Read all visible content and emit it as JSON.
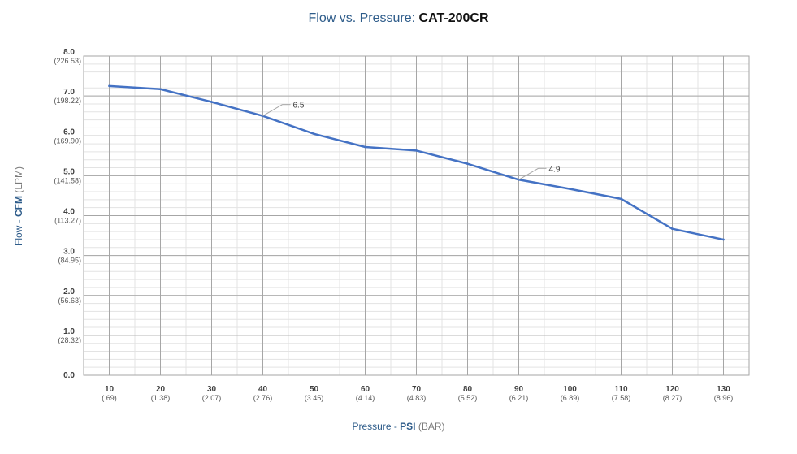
{
  "chart_data": {
    "type": "line",
    "title": "Flow vs. Pressure:",
    "title_model": "CAT-200CR",
    "xlabel_prefix": "Pressure - ",
    "xlabel_main": "PSI",
    "xlabel_unit": "(BAR)",
    "ylabel_prefix": "Flow - ",
    "ylabel_main": "CFM",
    "ylabel_unit": "(LPM)",
    "x_ticks": [
      10,
      20,
      30,
      40,
      50,
      60,
      70,
      80,
      90,
      100,
      110,
      120,
      130
    ],
    "x_ticks_secondary": [
      "(.69)",
      "(1.38)",
      "(2.07)",
      "(2.76)",
      "(3.45)",
      "(4.14)",
      "(4.83)",
      "(5.52)",
      "(6.21)",
      "(6.89)",
      "(7.58)",
      "(8.27)",
      "(8.96)"
    ],
    "y_ticks": [
      "0.0",
      "1.0",
      "2.0",
      "3.0",
      "4.0",
      "5.0",
      "6.0",
      "7.0",
      "8.0"
    ],
    "y_ticks_secondary": [
      "",
      "(28.32)",
      "(56.63)",
      "(84.95)",
      "(113.27)",
      "(141.58)",
      "(169.90)",
      "(198.22)",
      "(226.53)"
    ],
    "xlim": [
      5,
      135
    ],
    "ylim": [
      0,
      8
    ],
    "grid": true,
    "series": [
      {
        "color": "#4472c4",
        "x": [
          10,
          20,
          30,
          40,
          50,
          60,
          70,
          80,
          90,
          100,
          110,
          120,
          130
        ],
        "y": [
          7.25,
          7.17,
          6.85,
          6.5,
          6.05,
          5.72,
          5.63,
          5.3,
          4.9,
          4.67,
          4.42,
          3.67,
          3.4
        ]
      }
    ],
    "annotations": [
      {
        "x": 40,
        "y": 6.5,
        "text": "6.5"
      },
      {
        "x": 90,
        "y": 4.9,
        "text": "4.9"
      }
    ]
  }
}
